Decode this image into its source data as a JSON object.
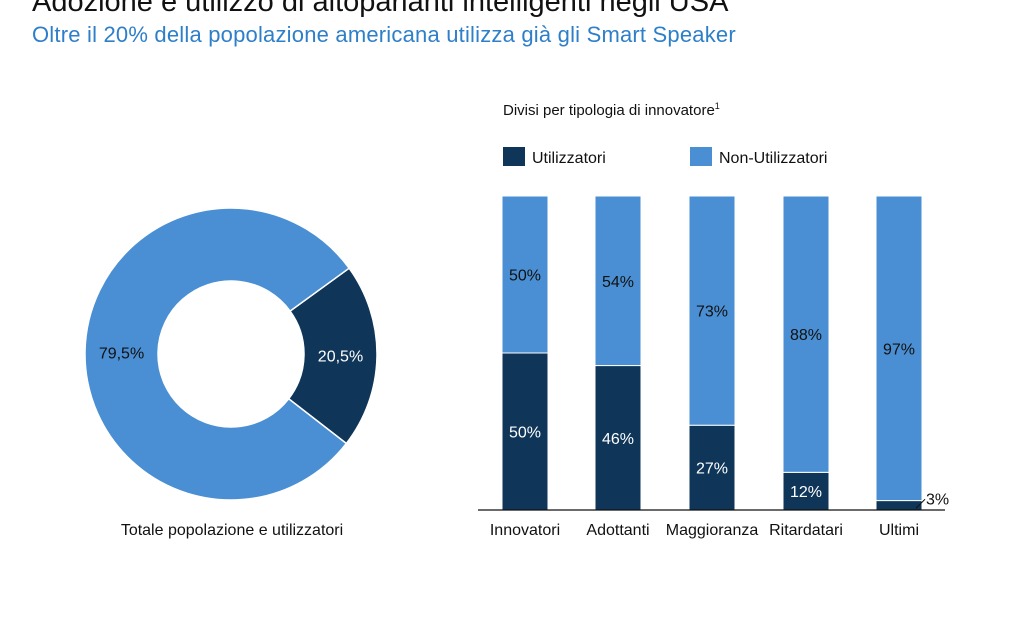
{
  "header": {
    "title": "Adozione e utilizzo di altoparlanti intelligenti negli USA",
    "subtitle": "Oltre il 20% della popolazione americana utilizza già gli Smart Speaker"
  },
  "colors": {
    "dark": "#0f3659",
    "light": "#4a8fd3",
    "subtitle": "#2e7fc9"
  },
  "chart_data": [
    {
      "type": "pie",
      "subtype": "donut",
      "caption": "Totale popolazione e utilizzatori",
      "slices": [
        {
          "label": "20,5%",
          "value": 20.5,
          "color": "#0f3659"
        },
        {
          "label": "79,5%",
          "value": 79.5,
          "color": "#4a8fd3"
        }
      ]
    },
    {
      "type": "bar",
      "stacked": true,
      "title": "Divisi per tipologia di innovatore",
      "title_superscript": "1",
      "legend_position": "top",
      "ylim": [
        0,
        100
      ],
      "categories": [
        "Innovatori",
        "Adottanti",
        "Maggioranza",
        "Ritardatari",
        "Ultimi"
      ],
      "series": [
        {
          "name": "Utilizzatori",
          "color": "#0f3659",
          "values": [
            50,
            46,
            27,
            12,
            3
          ],
          "labels": [
            "50%",
            "46%",
            "27%",
            "12%",
            "3%"
          ]
        },
        {
          "name": "Non-Utilizzatori",
          "color": "#4a8fd3",
          "values": [
            50,
            54,
            73,
            88,
            97
          ],
          "labels": [
            "50%",
            "54%",
            "73%",
            "88%",
            "97%"
          ]
        }
      ]
    }
  ]
}
